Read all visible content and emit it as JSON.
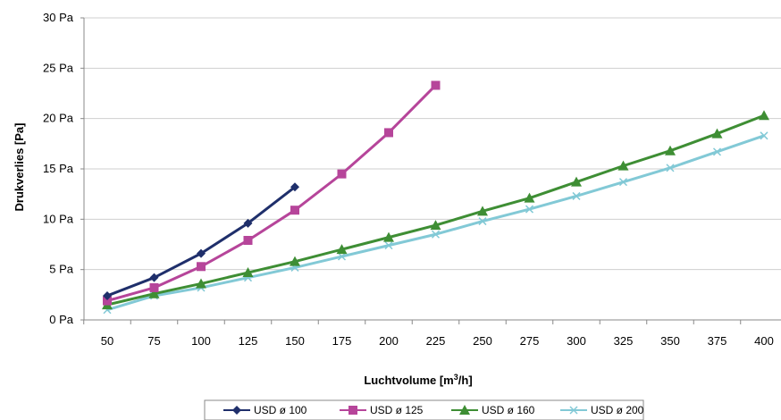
{
  "chart_data": {
    "type": "line",
    "title": "",
    "xlabel": "Luchtvolume [m",
    "xlabel_sup": "3",
    "xlabel_end": "/h]",
    "ylabel": "Drukverlies [Pa]",
    "categories": [
      "50",
      "75",
      "100",
      "125",
      "150",
      "175",
      "200",
      "225",
      "250",
      "275",
      "300",
      "325",
      "350",
      "375",
      "400"
    ],
    "x": [
      50,
      75,
      100,
      125,
      150,
      175,
      200,
      225,
      250,
      275,
      300,
      325,
      350,
      375,
      400
    ],
    "ylim": [
      0,
      30
    ],
    "yticks": [
      "0 Pa",
      "5 Pa",
      "10 Pa",
      "15 Pa",
      "20 Pa",
      "25 Pa",
      "30 Pa"
    ],
    "grid": "horizontal",
    "legend_position": "bottom",
    "series": [
      {
        "name": "USD ø 100",
        "color": "#1f2f6b",
        "marker": "diamond",
        "x": [
          50,
          75,
          100,
          125,
          150
        ],
        "values": [
          2.4,
          4.2,
          6.6,
          9.6,
          13.2
        ]
      },
      {
        "name": "USD ø 125",
        "color": "#b6459a",
        "marker": "square",
        "x": [
          50,
          75,
          100,
          125,
          150,
          175,
          200,
          225
        ],
        "values": [
          1.9,
          3.2,
          5.3,
          7.9,
          10.9,
          14.5,
          18.6,
          23.3
        ]
      },
      {
        "name": "USD ø 160",
        "color": "#3e8e34",
        "marker": "triangle",
        "x": [
          50,
          75,
          100,
          125,
          150,
          175,
          200,
          225,
          250,
          275,
          300,
          325,
          350,
          375,
          400
        ],
        "values": [
          1.5,
          2.6,
          3.6,
          4.7,
          5.8,
          7.0,
          8.2,
          9.4,
          10.8,
          12.1,
          13.7,
          15.3,
          16.8,
          18.5,
          20.3
        ]
      },
      {
        "name": "USD ø 200",
        "color": "#82c9d6",
        "marker": "x",
        "x": [
          50,
          75,
          100,
          125,
          150,
          175,
          200,
          225,
          250,
          275,
          300,
          325,
          350,
          375,
          400
        ],
        "values": [
          1.0,
          2.4,
          3.2,
          4.2,
          5.2,
          6.3,
          7.4,
          8.5,
          9.8,
          11.0,
          12.3,
          13.7,
          15.1,
          16.7,
          18.3
        ]
      }
    ]
  }
}
